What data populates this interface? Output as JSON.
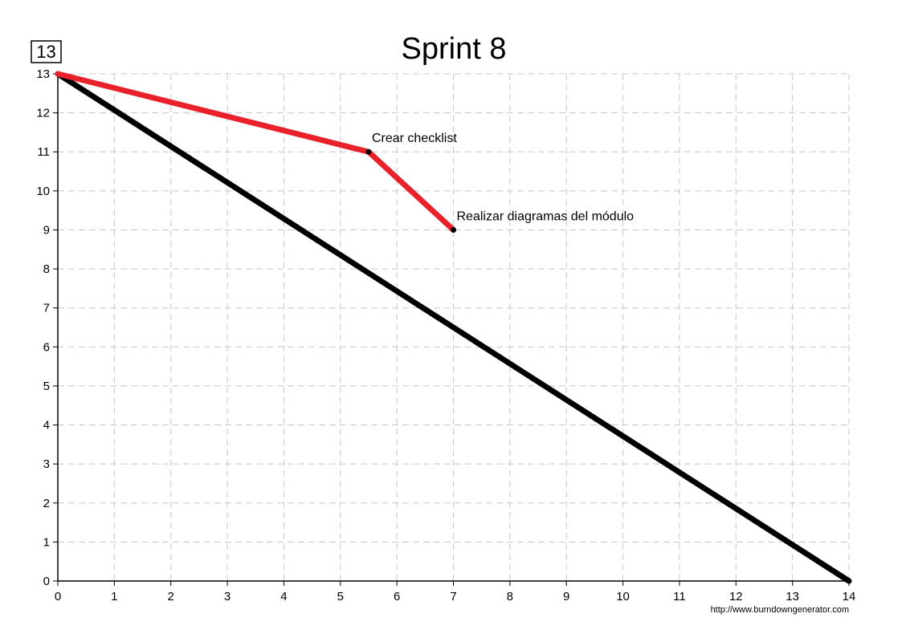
{
  "badge": "13",
  "footer_url": "http://www.burndowngenerator.com",
  "chart_data": {
    "type": "line",
    "title": "Sprint 8",
    "xlabel": "",
    "ylabel": "",
    "xlim": [
      0,
      14
    ],
    "ylim": [
      0,
      13
    ],
    "x_ticks": [
      "0",
      "1",
      "2",
      "3",
      "4",
      "5",
      "6",
      "7",
      "8",
      "9",
      "10",
      "11",
      "12",
      "13",
      "14"
    ],
    "y_ticks": [
      "0",
      "1",
      "2",
      "3",
      "4",
      "5",
      "6",
      "7",
      "8",
      "9",
      "10",
      "11",
      "12",
      "13"
    ],
    "grid": true,
    "series": [
      {
        "name": "",
        "color": "#000000",
        "points": [
          [
            0,
            13
          ],
          [
            14,
            0
          ]
        ]
      },
      {
        "name": "",
        "color": "#e8212b",
        "points": [
          [
            0,
            13
          ],
          [
            5.5,
            11
          ],
          [
            7,
            9
          ]
        ]
      }
    ],
    "annotations": [
      {
        "text": "Crear checklist",
        "x": 5.5,
        "y": 11
      },
      {
        "text": "Realizar diagramas del módulo",
        "x": 7,
        "y": 9
      }
    ]
  }
}
